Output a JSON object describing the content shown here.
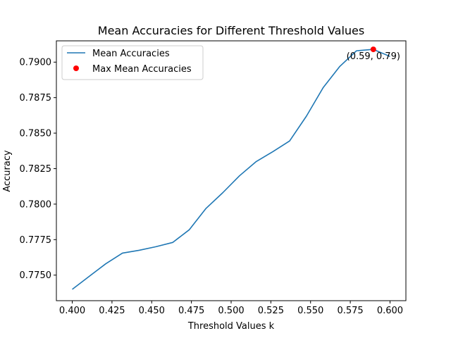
{
  "chart_data": {
    "type": "line",
    "title": "Mean Accuracies for Different Threshold Values",
    "xlabel": "Threshold Values k",
    "ylabel": "Accuracy",
    "xlim": [
      0.39,
      0.61
    ],
    "ylim": [
      0.7732,
      0.7915
    ],
    "grid": false,
    "legend_position": "top-left",
    "xticks": [
      0.4,
      0.425,
      0.45,
      0.475,
      0.5,
      0.525,
      0.55,
      0.575,
      0.6
    ],
    "xtick_labels": [
      "0.400",
      "0.425",
      "0.450",
      "0.475",
      "0.500",
      "0.525",
      "0.550",
      "0.575",
      "0.600"
    ],
    "yticks": [
      0.775,
      0.7775,
      0.78,
      0.7825,
      0.785,
      0.7875,
      0.79
    ],
    "ytick_labels": [
      "0.7750",
      "0.7775",
      "0.7800",
      "0.7825",
      "0.7850",
      "0.7875",
      "0.7900"
    ],
    "series": [
      {
        "name": "Mean Accuracies",
        "color": "#1f77b4",
        "x": [
          0.4,
          0.4105,
          0.4211,
          0.4316,
          0.4421,
          0.4526,
          0.4632,
          0.4737,
          0.4842,
          0.4947,
          0.5053,
          0.5158,
          0.5263,
          0.5368,
          0.5474,
          0.5579,
          0.5684,
          0.5789,
          0.5895,
          0.6
        ],
        "y": [
          0.774,
          0.7749,
          0.7758,
          0.77655,
          0.77675,
          0.777,
          0.7773,
          0.7782,
          0.7797,
          0.7808,
          0.782,
          0.783,
          0.7837,
          0.78445,
          0.7862,
          0.7882,
          0.7897,
          0.7908,
          0.7909,
          0.7904
        ]
      },
      {
        "name": "Max Mean Accuracies",
        "color": "#ff0000",
        "marker": "point",
        "x": [
          0.5895
        ],
        "y": [
          0.7909
        ]
      }
    ],
    "annotations": [
      {
        "text": "(0.59, 0.79)",
        "x": 0.5895,
        "y": 0.7909
      }
    ]
  }
}
